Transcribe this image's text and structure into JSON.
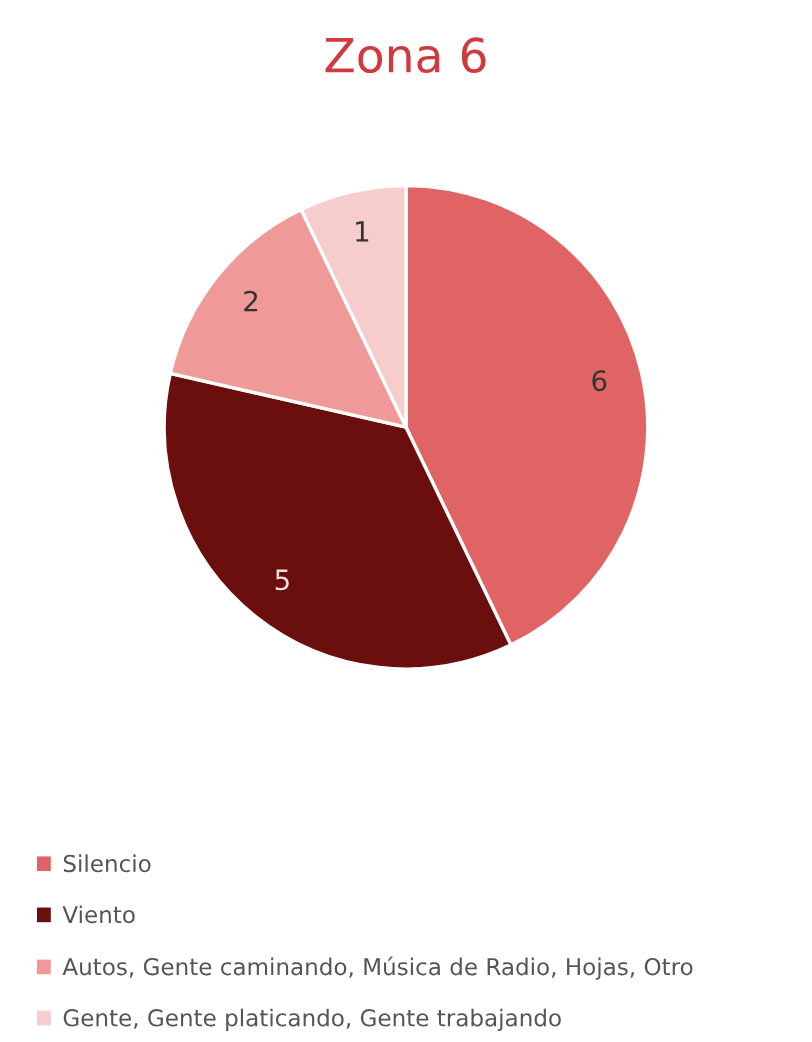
{
  "chart_data": {
    "type": "pie",
    "title": "Zona 6",
    "categories": [
      "Silencio",
      "Viento",
      "Autos, Gente caminando, Música de Radio, Hojas, Otro",
      "Gente, Gente platicando, Gente trabajando"
    ],
    "values": [
      6,
      5,
      2,
      1
    ],
    "colors": [
      "#e06464",
      "#6a0e0e",
      "#ef9a98",
      "#f6cccc"
    ],
    "data_labels": true,
    "legend": "bottom"
  }
}
